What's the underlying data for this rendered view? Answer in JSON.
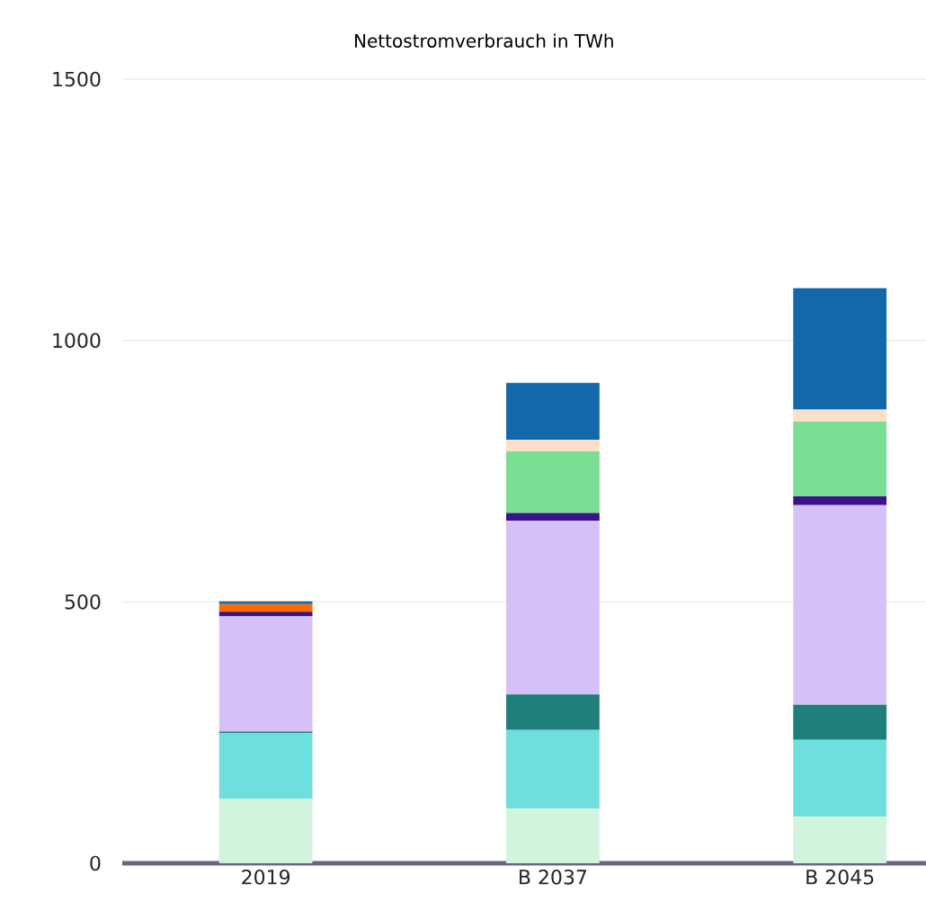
{
  "chart_data": {
    "type": "bar",
    "title": "Nettostromverbrauch in TWh",
    "categories": [
      "2019",
      "B 2037",
      "B 2045"
    ],
    "stacked": true,
    "ylim": [
      0,
      1500
    ],
    "yticks": [
      0,
      500,
      1000,
      1500
    ],
    "grid": "y",
    "series": [
      {
        "color": "#d2f4de",
        "values": [
          123,
          105,
          89
        ]
      },
      {
        "color": "#6edfdd",
        "values": [
          126,
          150,
          147
        ]
      },
      {
        "color": "#1f7f7a",
        "values": [
          3,
          68,
          67
        ]
      },
      {
        "color": "#d6c1f7",
        "values": [
          220,
          332,
          382
        ]
      },
      {
        "color": "#3c1189",
        "values": [
          9,
          15,
          17
        ]
      },
      {
        "color": "#7ade94",
        "values": [
          0,
          118,
          143
        ]
      },
      {
        "color": "#fde0c9",
        "values": [
          0,
          22,
          23
        ]
      },
      {
        "color": "#ff6a00",
        "values": [
          15,
          0,
          0
        ]
      },
      {
        "color": "#1368aa",
        "values": [
          5,
          109,
          232
        ]
      }
    ]
  }
}
